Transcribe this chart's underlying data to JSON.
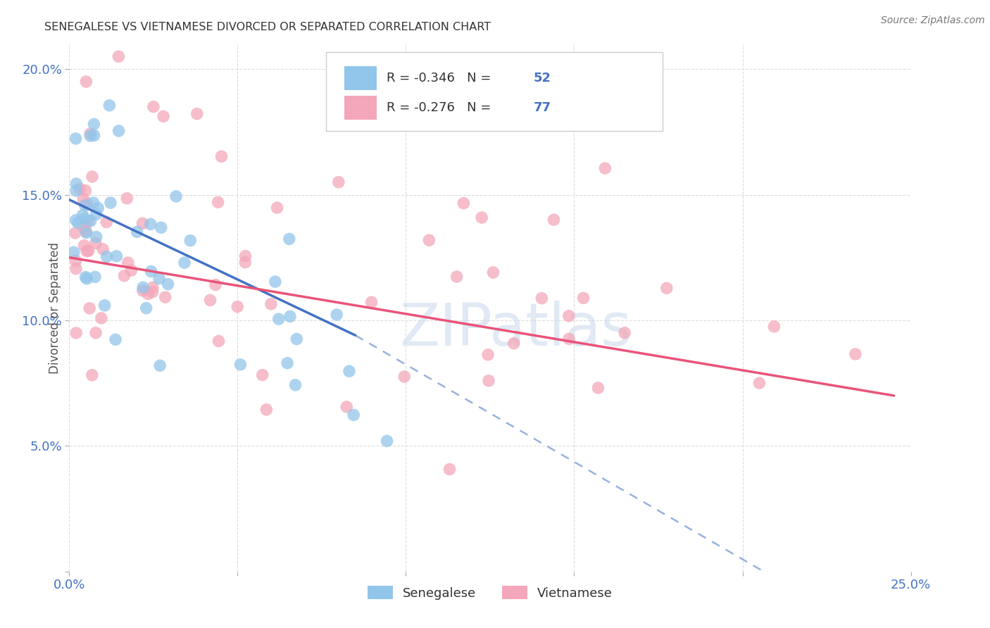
{
  "title": "SENEGALESE VS VIETNAMESE DIVORCED OR SEPARATED CORRELATION CHART",
  "source": "Source: ZipAtlas.com",
  "ylabel_label": "Divorced or Separated",
  "xlim": [
    0.0,
    0.25
  ],
  "ylim": [
    0.0,
    0.21
  ],
  "legend1_R": "-0.346",
  "legend1_N": "52",
  "legend2_R": "-0.276",
  "legend2_N": "77",
  "blue_color": "#92C5EA",
  "pink_color": "#F4A7BA",
  "blue_line_color": "#4472C4",
  "pink_line_color": "#E8547A",
  "tick_color": "#4472C4",
  "watermark_color": "#CCDDEE"
}
